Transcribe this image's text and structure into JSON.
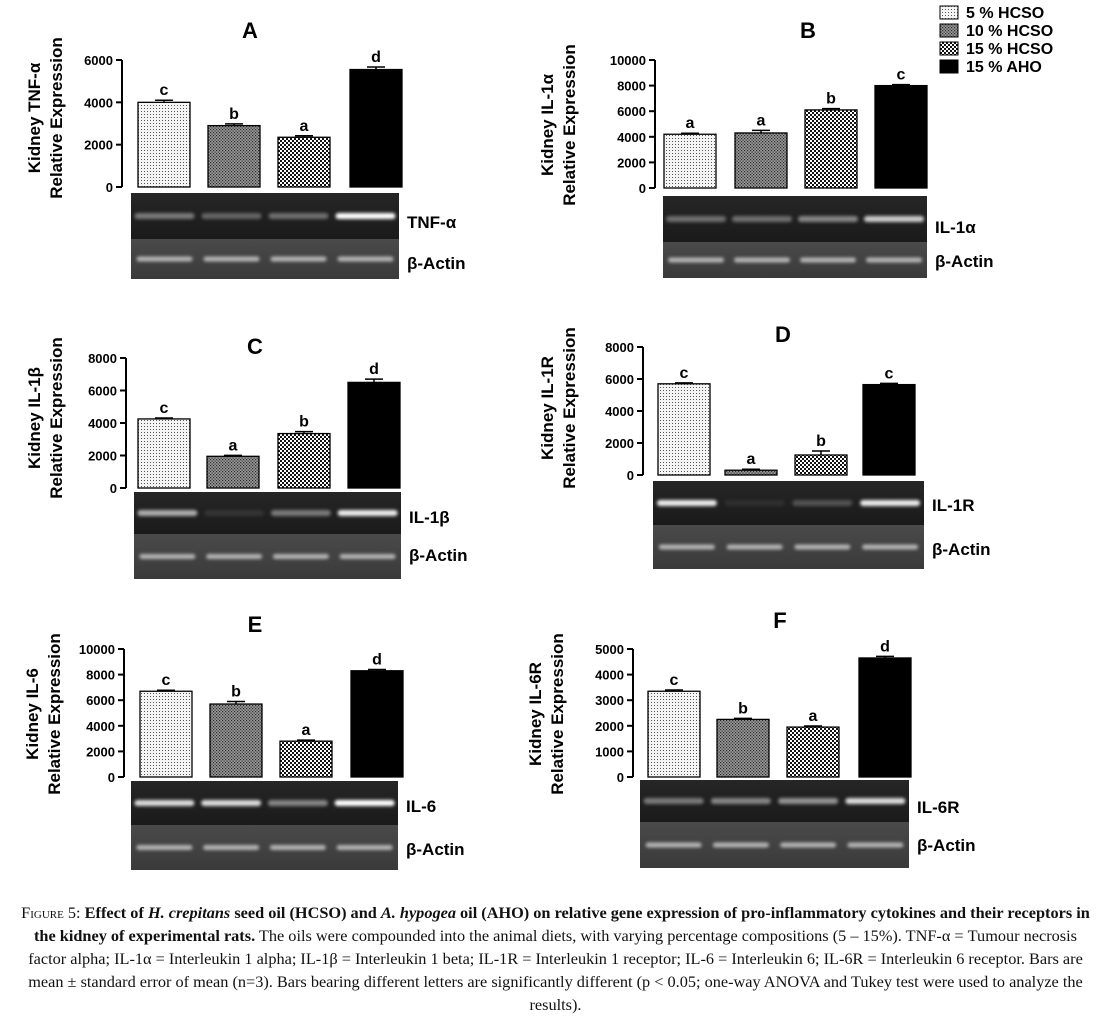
{
  "legend": [
    {
      "label": "5 % HCSO",
      "pattern": "dots"
    },
    {
      "label": "10 % HCSO",
      "pattern": "dense-dots"
    },
    {
      "label": "15 % HCSO",
      "pattern": "checker"
    },
    {
      "label": "15 % AHO",
      "pattern": "solid-black"
    }
  ],
  "loading_control_label": "β-Actin",
  "chart_data": [
    {
      "type": "bar",
      "panel": "A",
      "ylabel": [
        "Kidney TNF-α",
        "Relative Expression"
      ],
      "ylim": [
        0,
        6000
      ],
      "yticks": [
        "0",
        "2000",
        "4000",
        "6000"
      ],
      "values": [
        4000,
        2900,
        2350,
        5550
      ],
      "errors": [
        100,
        80,
        70,
        120
      ],
      "letters": [
        "c",
        "b",
        "a",
        "d"
      ],
      "gel_label": "TNF-α"
    },
    {
      "type": "bar",
      "panel": "B",
      "ylabel": [
        "Kidney IL-1α",
        "Relative Expression"
      ],
      "ylim": [
        0,
        10000
      ],
      "yticks": [
        "0",
        "2000",
        "4000",
        "6000",
        "8000",
        "10000"
      ],
      "values": [
        4200,
        4300,
        6100,
        8000
      ],
      "errors": [
        80,
        200,
        100,
        80
      ],
      "letters": [
        "a",
        "a",
        "b",
        "c"
      ],
      "gel_label": "IL-1α"
    },
    {
      "type": "bar",
      "panel": "C",
      "ylabel": [
        "Kidney IL-1β",
        "Relative Expression"
      ],
      "ylim": [
        0,
        8000
      ],
      "yticks": [
        "0",
        "2000",
        "4000",
        "6000",
        "8000"
      ],
      "values": [
        4250,
        1950,
        3350,
        6500
      ],
      "errors": [
        60,
        60,
        120,
        200
      ],
      "letters": [
        "c",
        "a",
        "b",
        "d"
      ],
      "gel_label": "IL-1β"
    },
    {
      "type": "bar",
      "panel": "D",
      "ylabel": [
        "Kidney IL-1R",
        "Relative Expression"
      ],
      "ylim": [
        0,
        8000
      ],
      "yticks": [
        "0",
        "2000",
        "4000",
        "6000",
        "8000"
      ],
      "values": [
        5700,
        300,
        1250,
        5650
      ],
      "errors": [
        60,
        60,
        250,
        80
      ],
      "letters": [
        "c",
        "a",
        "b",
        "c"
      ],
      "gel_label": "IL-1R"
    },
    {
      "type": "bar",
      "panel": "E",
      "ylabel": [
        "Kidney IL-6",
        "Relative Expression"
      ],
      "ylim": [
        0,
        10000
      ],
      "yticks": [
        "0",
        "2000",
        "4000",
        "6000",
        "8000",
        "10000"
      ],
      "values": [
        6700,
        5700,
        2800,
        8300
      ],
      "errors": [
        80,
        200,
        80,
        100
      ],
      "letters": [
        "c",
        "b",
        "a",
        "d"
      ],
      "gel_label": "IL-6"
    },
    {
      "type": "bar",
      "panel": "F",
      "ylabel": [
        "Kidney IL-6R",
        "Relative Expression"
      ],
      "ylim": [
        0,
        5000
      ],
      "yticks": [
        "0",
        "1000",
        "2000",
        "3000",
        "4000",
        "5000"
      ],
      "values": [
        3350,
        2250,
        1950,
        4650
      ],
      "errors": [
        50,
        40,
        40,
        60
      ],
      "letters": [
        "c",
        "b",
        "a",
        "d"
      ],
      "gel_label": "IL-6R"
    }
  ],
  "caption": {
    "fig_label": "Figure",
    "fig_number": " 5: ",
    "bold_1": "Effect of ",
    "italic_1": "H. crepitans",
    "bold_2": " seed oil (HCSO) and ",
    "italic_2": "A. hypogea",
    "bold_3": " oil (AHO) on relative gene expression of pro-inflammatory cytokines and their receptors in the kidney of experimental rats.",
    "rest": " The oils were compounded into the animal diets, with varying percentage compositions (5 – 15%). TNF-α = Tumour necrosis factor alpha; IL-1α = Interleukin 1 alpha; IL-1β = Interleukin 1 beta; IL-1R = Interleukin 1 receptor; IL-6 = Interleukin 6; IL-6R = Interleukin 6 receptor. Bars are mean ± standard error of mean (n=3). Bars bearing different letters are significantly different (p < 0.05; one-way ANOVA and Tukey test were used to analyze the results)."
  }
}
